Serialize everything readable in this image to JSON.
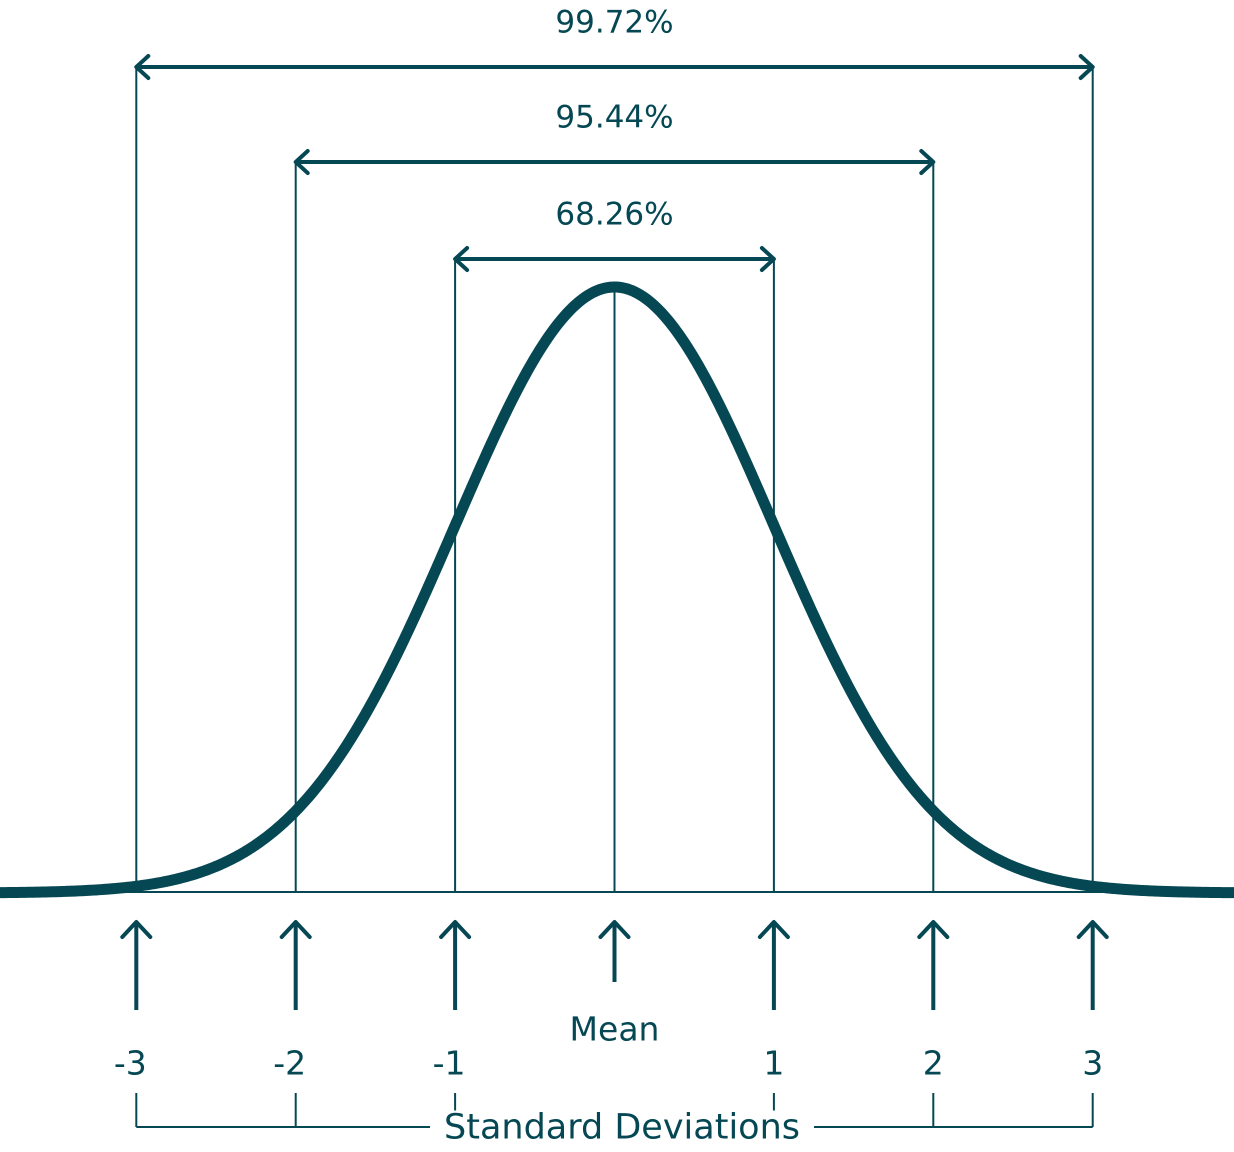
{
  "chart_data": {
    "type": "line",
    "title": "",
    "xlabel": "Standard Deviations",
    "ylabel": "",
    "xlim": [
      -3.85,
      3.85
    ],
    "curve": {
      "distribution": "normal",
      "mean": 0,
      "sd": 1
    },
    "ticks": [
      {
        "value": -3,
        "label": "-3"
      },
      {
        "value": -2,
        "label": "-2"
      },
      {
        "value": -1,
        "label": "-1"
      },
      {
        "value": 0,
        "label": ""
      },
      {
        "value": 1,
        "label": "1"
      },
      {
        "value": 2,
        "label": "2"
      },
      {
        "value": 3,
        "label": "3"
      }
    ],
    "mean_label": "Mean",
    "intervals": [
      {
        "from": -3,
        "to": 3,
        "percent": 99.72,
        "label": "99.72%"
      },
      {
        "from": -2,
        "to": 2,
        "percent": 95.44,
        "label": "95.44%"
      },
      {
        "from": -1,
        "to": 1,
        "percent": 68.26,
        "label": "68.26%"
      }
    ],
    "colors": {
      "ink": "#054854",
      "background": "#ffffff"
    }
  }
}
